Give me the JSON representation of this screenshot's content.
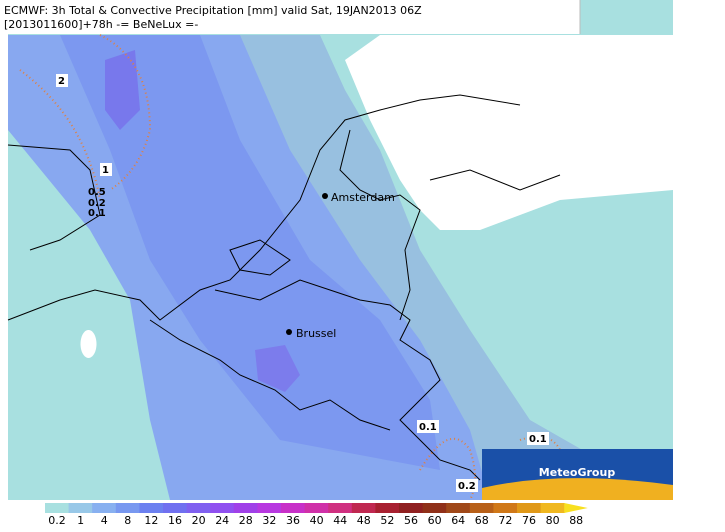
{
  "header": {
    "line1": "ECMWF: 3h Total & Convective Precipitation [mm] valid Sat, 19JAN2013 06Z",
    "line2": "[2013011600]+78h -= BeNeLux =-"
  },
  "cities": [
    {
      "label": "Amsterdam"
    },
    {
      "label": "Brussel"
    }
  ],
  "contour_labels": [
    "2",
    "1",
    "0.5",
    "0.2",
    "0.1",
    "0.1",
    "0.1",
    "0.2"
  ],
  "logo": "MeteoGroup",
  "colorbar": {
    "labels": [
      "0.2",
      "1",
      "4",
      "8",
      "12",
      "16",
      "20",
      "24",
      "28",
      "32",
      "36",
      "40",
      "44",
      "48",
      "52",
      "56",
      "60",
      "64",
      "68",
      "72",
      "76",
      "80",
      "88"
    ],
    "colors": [
      "#a8e0e0",
      "#98c8e8",
      "#88b0f0",
      "#7898f0",
      "#6c80f0",
      "#7070f0",
      "#8060f0",
      "#9050f0",
      "#a040e8",
      "#b838e0",
      "#c830c8",
      "#d030a8",
      "#d03080",
      "#c02850",
      "#a82030",
      "#902020",
      "#903018",
      "#a04818",
      "#b86018",
      "#d07818",
      "#e09818",
      "#f0b820",
      "#f8e020"
    ]
  }
}
